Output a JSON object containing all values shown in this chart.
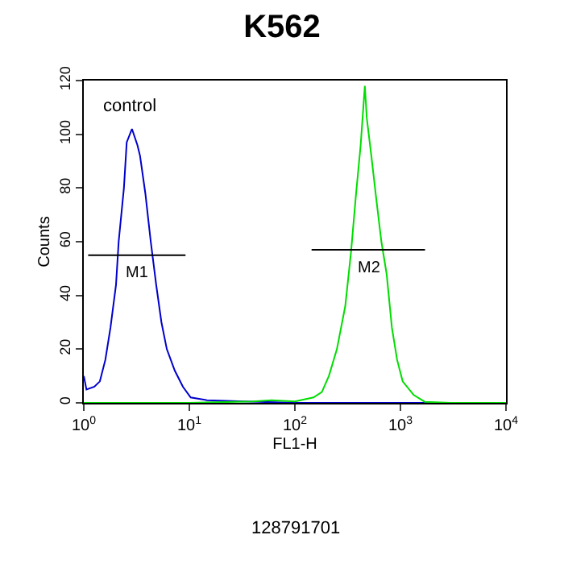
{
  "chart_data": {
    "type": "line",
    "title": "K562",
    "xlabel": "FL1-H",
    "ylabel": "Counts",
    "log": "x",
    "xlim": [
      1,
      10000
    ],
    "ylim": [
      0,
      120
    ],
    "xticks": [
      {
        "value": 1,
        "label": "10$^{0}$"
      },
      {
        "value": 10,
        "label": "10$^{1}$"
      },
      {
        "value": 100,
        "label": "10$^{2}$"
      },
      {
        "value": 1000,
        "label": "10$^{3}$"
      },
      {
        "value": 10000,
        "label": "10$^{4}$"
      }
    ],
    "yticks": [
      0,
      20,
      40,
      60,
      80,
      100,
      120
    ],
    "legend": false,
    "marker": "none",
    "line_style": "solid",
    "series": [
      {
        "name": "control",
        "color": "#0000cc",
        "x": [
          1.0,
          1.06,
          1.26,
          1.42,
          1.6,
          1.79,
          2.02,
          2.14,
          2.4,
          2.55,
          2.86,
          3.22,
          3.41,
          3.83,
          4.31,
          4.85,
          5.44,
          6.12,
          7.28,
          8.69,
          10.3,
          14.7,
          33,
          107,
          1000,
          10000
        ],
        "values": [
          10,
          5,
          6,
          8,
          16,
          28,
          44,
          60,
          80,
          97,
          102,
          96,
          92,
          78,
          60,
          44,
          30,
          20,
          12,
          6,
          2,
          1,
          0.5,
          0,
          0,
          0
        ]
      },
      {
        "color": "#00dd00",
        "x": [
          1,
          10,
          40,
          60,
          100,
          150,
          180,
          210,
          250,
          300,
          340,
          380,
          420,
          460,
          480,
          530,
          590,
          660,
          740,
          830,
          930,
          1050,
          1330,
          1700,
          3000,
          10000
        ],
        "values": [
          0,
          0,
          0.5,
          1,
          0.5,
          2,
          4,
          10,
          20,
          36,
          56,
          78,
          96,
          118,
          106,
          92,
          76,
          60,
          48,
          28,
          16,
          8,
          3,
          0.4,
          0,
          0
        ]
      },
      {
        "name": "M1",
        "color": "#000000",
        "x": [
          1.1,
          9.2
        ],
        "values": [
          55,
          55
        ]
      },
      {
        "name": "M2",
        "color": "#000000",
        "x": [
          144,
          1710
        ],
        "values": [
          57,
          57
        ]
      }
    ],
    "annotations": [
      "128791701"
    ]
  }
}
